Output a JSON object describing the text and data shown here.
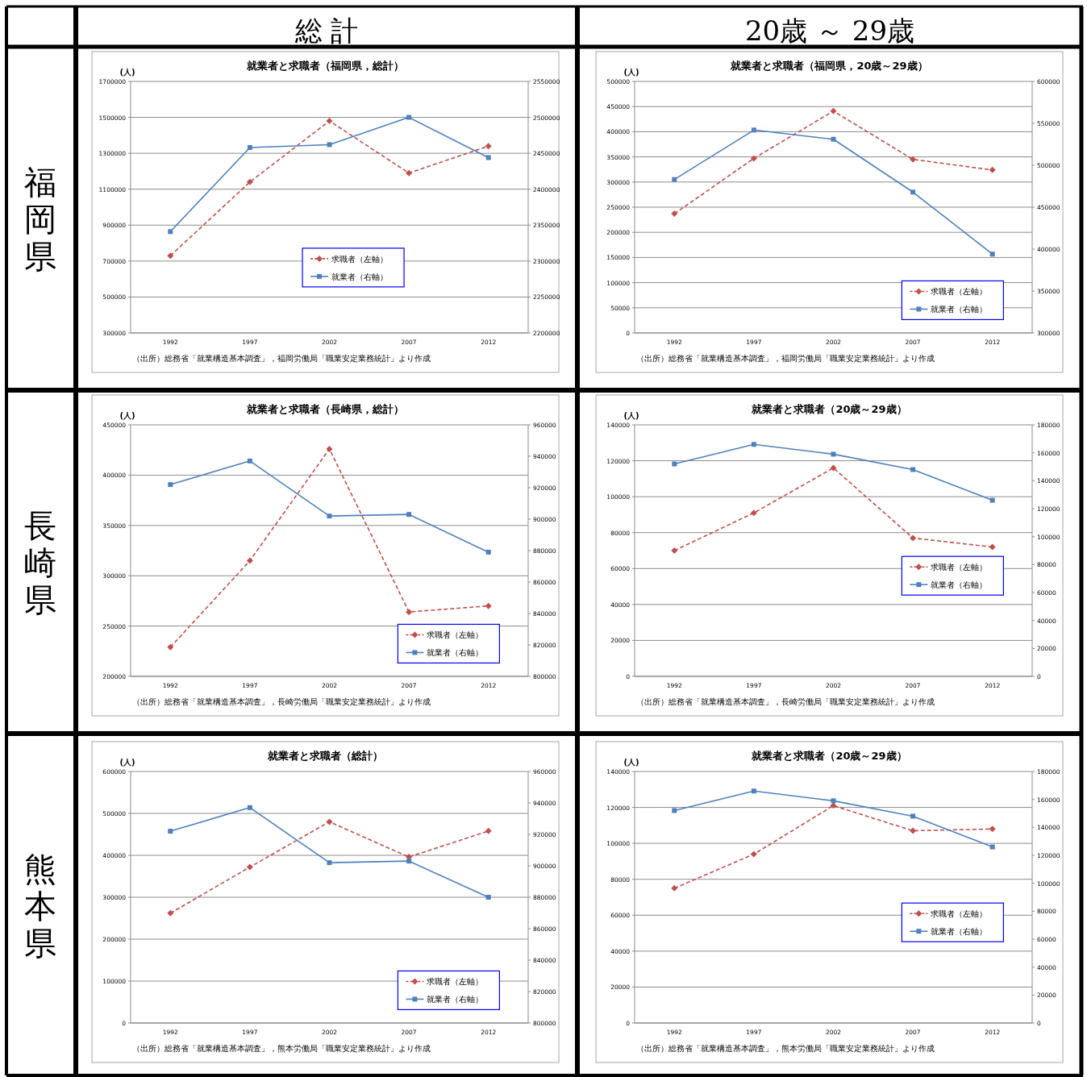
{
  "chart_data": [
    {
      "type": "line",
      "title": "就業者と求職者（福岡県，総計）",
      "ylabel": "(人)",
      "categories": [
        "1992",
        "1997",
        "2002",
        "2007",
        "2012"
      ],
      "ylim": [
        300000,
        1700000
      ],
      "yticks": [
        300000,
        500000,
        700000,
        900000,
        1100000,
        1300000,
        1500000,
        1700000
      ],
      "y2lim": [
        2200000,
        2550000
      ],
      "y2ticks": [
        2200000,
        2250000,
        2300000,
        2350000,
        2400000,
        2450000,
        2500000,
        2550000
      ],
      "grid": "y",
      "legend": "bottom",
      "annotations": [
        "（出所）総務省「就業構造基本調査」，福岡労働局「職業安定業務統計」より作成",
        "総 計",
        "福岡県"
      ],
      "series": [
        {
          "name": "求職者（左軸）",
          "color": "#c0504d",
          "marker": "diamond",
          "line_style": "dashed",
          "values": [
            730000,
            1140000,
            1480000,
            1190000,
            1340000
          ]
        },
        {
          "name": "就業者（右軸）",
          "color": "#4f81bd",
          "marker": "square",
          "line_style": "solid",
          "axis": "y2",
          "values": [
            2341000,
            2458000,
            2462000,
            2500000,
            2444000
          ]
        }
      ]
    },
    {
      "type": "line",
      "title": "就業者と求職者（福岡県，20歳～29歳）",
      "ylabel": "(人)",
      "categories": [
        "1992",
        "1997",
        "2002",
        "2007",
        "2012"
      ],
      "ylim": [
        0,
        500000
      ],
      "yticks": [
        0,
        50000,
        100000,
        150000,
        200000,
        250000,
        300000,
        350000,
        400000,
        450000,
        500000
      ],
      "y2lim": [
        300000,
        600000
      ],
      "y2ticks": [
        300000,
        350000,
        400000,
        450000,
        500000,
        550000,
        600000
      ],
      "grid": "y",
      "legend": "bottom right",
      "annotations": [
        "（出所）総務省「就業構造基本調査」，福岡労働局「職業安定業務統計」より作成",
        "20歳 ～ 29歳"
      ],
      "series": [
        {
          "name": "求職者（左軸）",
          "color": "#c0504d",
          "marker": "diamond",
          "line_style": "dashed",
          "values": [
            237000,
            347000,
            441000,
            345000,
            324000
          ]
        },
        {
          "name": "就業者（右軸）",
          "color": "#4f81bd",
          "marker": "square",
          "line_style": "solid",
          "axis": "y2",
          "values": [
            483000,
            542000,
            531000,
            468000,
            394000
          ]
        }
      ]
    },
    {
      "type": "line",
      "title": "就業者と求職者（長崎県，総計）",
      "ylabel": "(人)",
      "categories": [
        "1992",
        "1997",
        "2002",
        "2007",
        "2012"
      ],
      "ylim": [
        200000,
        450000
      ],
      "yticks": [
        200000,
        250000,
        300000,
        350000,
        400000,
        450000
      ],
      "y2lim": [
        800000,
        960000
      ],
      "y2ticks": [
        800000,
        820000,
        840000,
        860000,
        880000,
        900000,
        920000,
        940000,
        960000
      ],
      "grid": "y",
      "legend": "bottom right",
      "annotations": [
        "（出所）総務省「就業構造基本調査」，長崎労働局「職業安定業務統計」より作成",
        "長崎県"
      ],
      "series": [
        {
          "name": "求職者（左軸）",
          "color": "#c0504d",
          "marker": "diamond",
          "line_style": "dashed",
          "values": [
            229000,
            315000,
            426000,
            264000,
            270000
          ]
        },
        {
          "name": "就業者（右軸）",
          "color": "#4f81bd",
          "marker": "square",
          "line_style": "solid",
          "axis": "y2",
          "values": [
            922000,
            937000,
            902000,
            903000,
            879000
          ]
        }
      ]
    },
    {
      "type": "line",
      "title": "就業者と求職者（20歳～29歳）",
      "ylabel": "(人)",
      "categories": [
        "1992",
        "1997",
        "2002",
        "2007",
        "2012"
      ],
      "ylim": [
        0,
        140000
      ],
      "yticks": [
        0,
        20000,
        40000,
        60000,
        80000,
        100000,
        120000,
        140000
      ],
      "y2lim": [
        0,
        180000
      ],
      "y2ticks": [
        0,
        20000,
        40000,
        60000,
        80000,
        100000,
        120000,
        140000,
        160000,
        180000
      ],
      "grid": "y",
      "legend": "right",
      "annotations": [
        "（出所）総務省「就業構造基本調査」，長崎労働局「職業安定業務統計」より作成"
      ],
      "series": [
        {
          "name": "求職者（左軸）",
          "color": "#c0504d",
          "marker": "diamond",
          "line_style": "dashed",
          "values": [
            70000,
            91000,
            116000,
            77000,
            72000
          ]
        },
        {
          "name": "就業者（右軸）",
          "color": "#4f81bd",
          "marker": "square",
          "line_style": "solid",
          "axis": "y2",
          "values": [
            152000,
            166000,
            159000,
            148000,
            126000
          ]
        }
      ]
    },
    {
      "type": "line",
      "title": "就業者と求職者（総計）",
      "ylabel": "(人)",
      "categories": [
        "1992",
        "1997",
        "2002",
        "2007",
        "2012"
      ],
      "ylim": [
        0,
        600000
      ],
      "yticks": [
        0,
        100000,
        200000,
        300000,
        400000,
        500000,
        600000
      ],
      "y2lim": [
        800000,
        960000
      ],
      "y2ticks": [
        800000,
        820000,
        840000,
        860000,
        880000,
        900000,
        920000,
        940000,
        960000
      ],
      "grid": "y",
      "legend": "bottom right",
      "annotations": [
        "（出所）総務省「就業構造基本調査」，熊本労働局「職業安定業務統計」より作成",
        "熊本県"
      ],
      "series": [
        {
          "name": "求職者（左軸）",
          "color": "#c0504d",
          "marker": "diamond",
          "line_style": "dashed",
          "values": [
            262000,
            372000,
            480000,
            396000,
            458000
          ]
        },
        {
          "name": "就業者（右軸）",
          "color": "#4f81bd",
          "marker": "square",
          "line_style": "solid",
          "axis": "y2",
          "values": [
            922000,
            937000,
            902000,
            903000,
            880000
          ]
        }
      ]
    },
    {
      "type": "line",
      "title": "就業者と求職者（20歳～29歳）",
      "ylabel": "(人)",
      "categories": [
        "1992",
        "1997",
        "2002",
        "2007",
        "2012"
      ],
      "ylim": [
        0,
        140000
      ],
      "yticks": [
        0,
        20000,
        40000,
        60000,
        80000,
        100000,
        120000,
        140000
      ],
      "y2lim": [
        0,
        180000
      ],
      "y2ticks": [
        0,
        20000,
        40000,
        60000,
        80000,
        100000,
        120000,
        140000,
        160000,
        180000
      ],
      "grid": "y",
      "legend": "right",
      "annotations": [
        "（出所）総務省「就業構造基本調査」，熊本労働局「職業安定業務統計」より作成"
      ],
      "series": [
        {
          "name": "求職者（左軸）",
          "color": "#c0504d",
          "marker": "diamond",
          "line_style": "dashed",
          "values": [
            75000,
            94000,
            121000,
            107000,
            108000
          ]
        },
        {
          "name": "就業者（右軸）",
          "color": "#4f81bd",
          "marker": "square",
          "line_style": "solid",
          "axis": "y2",
          "values": [
            152000,
            166000,
            159000,
            148000,
            126000
          ]
        }
      ]
    }
  ]
}
